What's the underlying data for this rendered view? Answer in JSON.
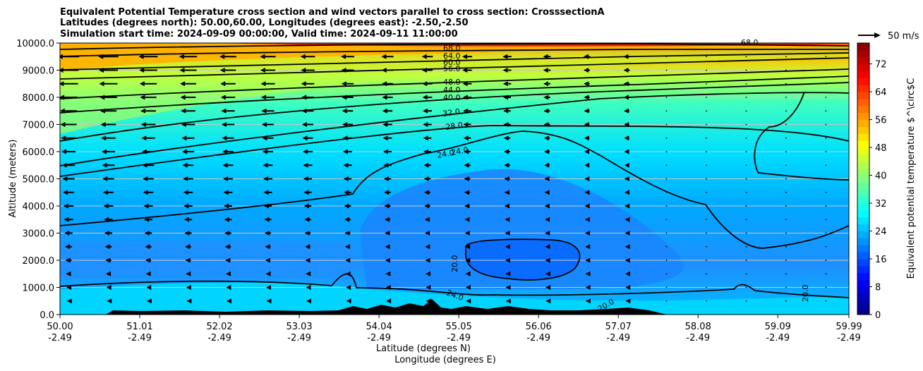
{
  "chart_data": {
    "type": "heatmap",
    "title": [
      "Equivalent Potential Temperature cross section and wind vectors parallel to cross section: CrosssectionA",
      "Latitudes (degrees north): 50.00,60.00, Longitudes (degrees east): -2.50,-2.50",
      "Simulation start time: 2024-09-09 00:00:00, Valid time: 2024-09-11 11:00:00"
    ],
    "xlabel": "Latitude (degrees N)",
    "xlabel2": "Longitude (degrees E)",
    "ylabel": "Altitude (meters)",
    "x_ticks": [
      {
        "lat": "50.00",
        "lon": "-2.49"
      },
      {
        "lat": "51.01",
        "lon": "-2.49"
      },
      {
        "lat": "52.02",
        "lon": "-2.49"
      },
      {
        "lat": "53.03",
        "lon": "-2.49"
      },
      {
        "lat": "54.04",
        "lon": "-2.49"
      },
      {
        "lat": "55.05",
        "lon": "-2.49"
      },
      {
        "lat": "56.06",
        "lon": "-2.49"
      },
      {
        "lat": "57.07",
        "lon": "-2.49"
      },
      {
        "lat": "58.08",
        "lon": "-2.49"
      },
      {
        "lat": "59.09",
        "lon": "-2.49"
      },
      {
        "lat": "59.99",
        "lon": "-2.49"
      }
    ],
    "y_ticks": [
      "0.0",
      "1000.0",
      "2000.0",
      "3000.0",
      "4000.0",
      "5000.0",
      "6000.0",
      "7000.0",
      "8000.0",
      "9000.0",
      "10000.0"
    ],
    "xlim": [
      50.0,
      59.99
    ],
    "ylim": [
      0,
      10000
    ],
    "grid": "horizontal",
    "colorbar": {
      "label": "Equivalent potential temperature $^\\circ$C",
      "ticks": [
        "0",
        "8",
        "16",
        "24",
        "32",
        "40",
        "48",
        "56",
        "64",
        "72"
      ],
      "range": [
        0,
        78
      ],
      "colormap": "jet"
    },
    "wind_key": {
      "label": "50 m/s",
      "speed": 50,
      "direction": "right"
    },
    "contour_labels": [
      "68.0",
      "64.0",
      "60.0",
      "56.0",
      "48.0",
      "44.0",
      "40.0",
      "32.0",
      "28.0",
      "24.0",
      "24.0",
      "20.0",
      "24.0",
      "20.0",
      "20.0",
      "68.0"
    ],
    "terrain_max_altitude": 600
  }
}
